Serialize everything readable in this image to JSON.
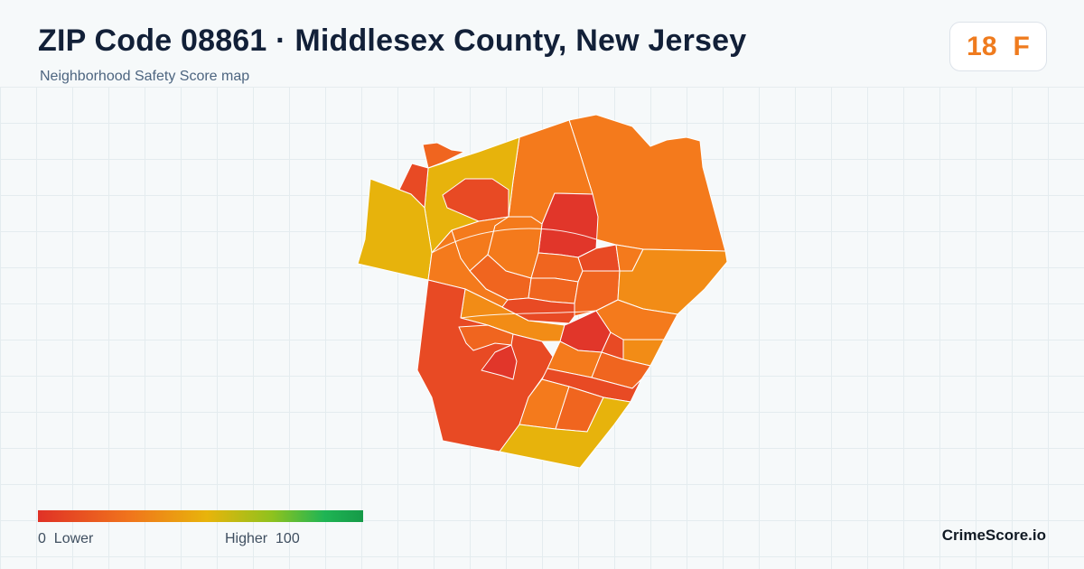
{
  "header": {
    "title": "ZIP Code 08861 · Middlesex County, New Jersey",
    "subtitle": "Neighborhood Safety Score map"
  },
  "badge": {
    "score": "18",
    "grade": "F",
    "color": "#ef7b1e"
  },
  "map": {
    "region_name": "08861",
    "palette": {
      "red": "#e1362a",
      "red_orange": "#e84a24",
      "orange": "#f0651f",
      "deep_orange": "#f47a1c",
      "amber": "#f28c16",
      "yellow": "#e7b30c"
    }
  },
  "legend": {
    "low_value": "0",
    "low_label": "Lower",
    "high_label": "Higher",
    "high_value": "100",
    "colors": [
      "#e03126",
      "#f0741c",
      "#e8b40b",
      "#8fc21e",
      "#1fb554",
      "#159a48"
    ]
  },
  "footer": {
    "brand": "CrimeScore.io"
  }
}
